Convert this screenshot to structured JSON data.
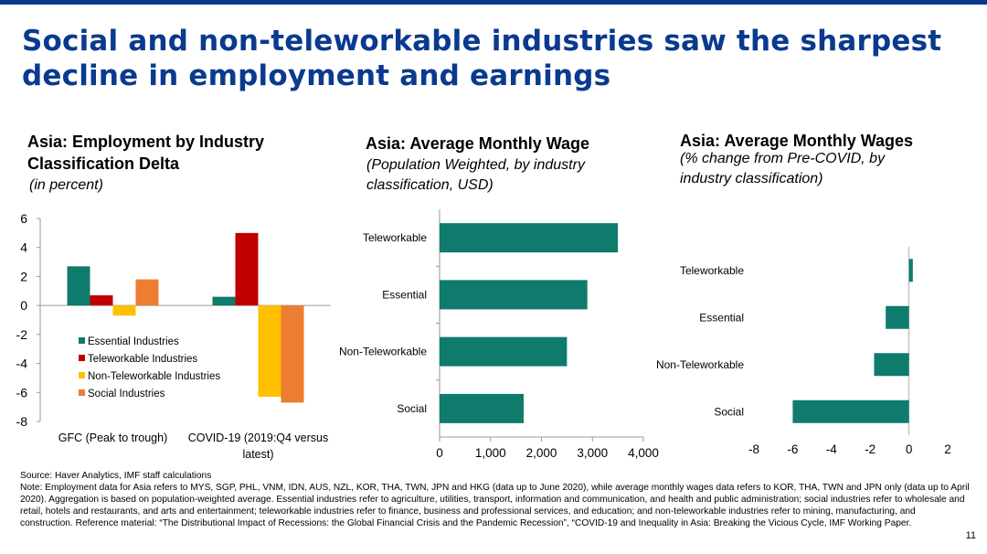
{
  "slide": {
    "title": "Social and non-teleworkable industries saw the sharpest decline in employment and earnings",
    "page_number": "11",
    "source": "Source: Haver Analytics, IMF staff calculations",
    "note": "Note: Employment data for Asia refers to MYS, SGP, PHL, VNM, IDN, AUS, NZL, KOR, THA, TWN, JPN and HKG (data up to June 2020), while average monthly wages data refers to KOR, THA, TWN and JPN only (data up to April 2020).  Aggregation is based on population-weighted average. Essential industries refer to agriculture, utilities, transport, information and communication, and health and public administration; social industries refer to wholesale and retail, hotels and restaurants, and arts and entertainment; teleworkable industries refer to finance, business and professional services, and education; and non-teleworkable industries refer to mining, manufacturing, and construction. Reference material: “The Distributional Impact of Recessions: the Global Financial Crisis and the Pandemic Recession”, “COVID-19 and Inequality in Asia: Breaking the Vicious Cycle, IMF Working Paper."
  },
  "chart_data": [
    {
      "type": "bar",
      "title": "Asia: Employment by Industry Classification Delta",
      "subtitle": "(in percent)",
      "categories": [
        "GFC (Peak to trough)",
        "COVID-19 (2019:Q4 versus latest)"
      ],
      "series": [
        {
          "name": "Essential Industries",
          "color": "#0f7b6c",
          "values": [
            2.7,
            0.6
          ]
        },
        {
          "name": "Teleworkable Industries",
          "color": "#c00000",
          "values": [
            0.7,
            5.0
          ]
        },
        {
          "name": "Non-Teleworkable Industries",
          "color": "#ffc000",
          "values": [
            -0.7,
            -6.3
          ]
        },
        {
          "name": "Social Industries",
          "color": "#ed7d31",
          "values": [
            1.8,
            -6.7
          ]
        }
      ],
      "ylim": [
        -8,
        6
      ],
      "yticks": [
        6,
        4,
        2,
        0,
        -2,
        -4,
        -6,
        -8
      ],
      "legend": "inside-bottom-left"
    },
    {
      "type": "bar",
      "orientation": "horizontal",
      "title": "Asia: Average Monthly Wage",
      "subtitle": "(Population Weighted, by industry classification, USD)",
      "categories": [
        "Teleworkable",
        "Essential",
        "Non-Teleworkable",
        "Social"
      ],
      "values": [
        3500,
        2900,
        2500,
        1650
      ],
      "color": "#0f7b6c",
      "xlim": [
        0,
        4000
      ],
      "xticks": [
        0,
        1000,
        2000,
        3000,
        4000
      ],
      "xtick_labels": [
        "0",
        "1,000",
        "2,000",
        "3,000",
        "4,000"
      ]
    },
    {
      "type": "bar",
      "orientation": "horizontal",
      "title": "Asia: Average Monthly Wages",
      "subtitle": "(% change from Pre-COVID, by industry classification)",
      "categories": [
        "Teleworkable",
        "Essential",
        "Non-Teleworkable",
        "Social"
      ],
      "values": [
        0.2,
        -1.2,
        -1.8,
        -6.0
      ],
      "color": "#0f7b6c",
      "xlim": [
        -8,
        2
      ],
      "xticks": [
        -8,
        -6,
        -4,
        -2,
        0,
        2
      ],
      "xtick_labels": [
        "-8",
        "-6",
        "-4",
        "-2",
        "0",
        "2"
      ]
    }
  ]
}
